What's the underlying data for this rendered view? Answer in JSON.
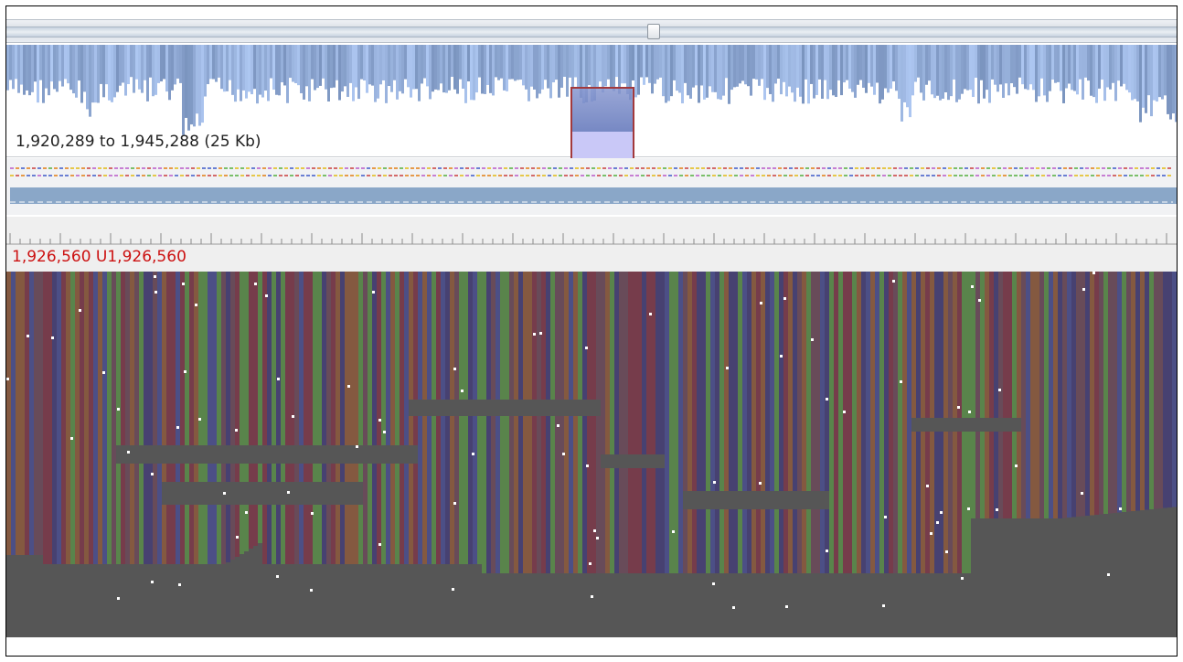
{
  "overview": {
    "range_label": "1,920,289 to 1,945,288 (25 Kb)"
  },
  "ruler": {
    "position_label": "1,926,560 U1,926,560"
  },
  "colors": {
    "accent": "#a2393c",
    "position_text": "#cc1111",
    "coverage": "#8fa6c4",
    "read_base_a": "#5a8a4a",
    "read_base_c": "#4b4f8c",
    "read_base_g": "#8a5a3e",
    "read_base_t": "#7a3a4a",
    "read_gap": "#565656",
    "snp_dot": "#ffffff"
  },
  "icons": {
    "scroll_thumb": "scrollbar-thumb-icon"
  }
}
